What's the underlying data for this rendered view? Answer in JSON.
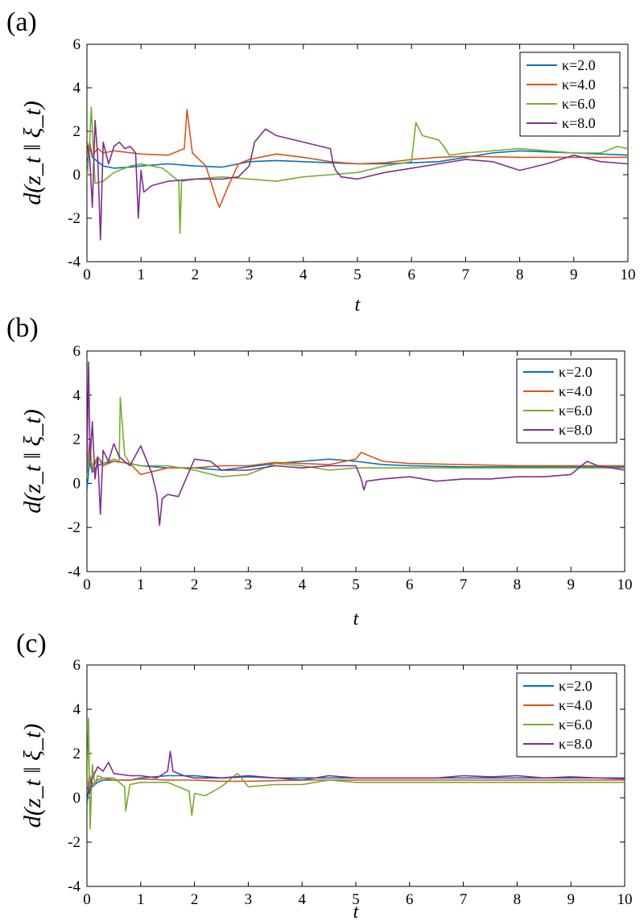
{
  "chart_data": [
    {
      "type": "line",
      "panel_label": "(a)",
      "xlabel": "t",
      "ylabel": "d(z_t ‖ ξ_t)",
      "xlim": [
        0,
        10
      ],
      "ylim": [
        -4,
        6
      ],
      "xticks": [
        "0",
        "1",
        "2",
        "3",
        "4",
        "5",
        "6",
        "7",
        "8",
        "9",
        "10"
      ],
      "yticks": [
        "6",
        "4",
        "2",
        "0",
        "-2",
        "-4"
      ],
      "legend_position": "top-right",
      "series": [
        {
          "name": "κ=2.0",
          "color": "#0072BD",
          "x": [
            0,
            0.05,
            0.1,
            0.2,
            0.3,
            0.5,
            0.8,
            1,
            1.5,
            2,
            2.5,
            3,
            3.5,
            4,
            4.5,
            5,
            5.5,
            6,
            6.5,
            7,
            7.5,
            8,
            8.5,
            9,
            9.5,
            10
          ],
          "y": [
            0.4,
            1.3,
            0.8,
            0.6,
            0.4,
            0.3,
            0.35,
            0.4,
            0.5,
            0.4,
            0.35,
            0.6,
            0.65,
            0.6,
            0.55,
            0.5,
            0.5,
            0.55,
            0.6,
            0.8,
            1.0,
            1.1,
            1.05,
            1.0,
            0.95,
            0.9
          ]
        },
        {
          "name": "κ=4.0",
          "color": "#D95319",
          "x": [
            0,
            0.05,
            0.1,
            0.2,
            0.3,
            0.5,
            1,
            1.5,
            1.8,
            1.85,
            1.95,
            2.2,
            2.35,
            2.4,
            2.45,
            2.6,
            2.8,
            3,
            3.5,
            4,
            4.5,
            5,
            5.5,
            6,
            6.5,
            7,
            8,
            9,
            10
          ],
          "y": [
            0.8,
            1.5,
            0.9,
            1.2,
            1.0,
            1.1,
            0.95,
            0.9,
            1.2,
            3.0,
            1.0,
            0.4,
            -0.8,
            -1.2,
            -1.5,
            -0.6,
            0.5,
            0.7,
            0.95,
            0.8,
            0.6,
            0.5,
            0.55,
            0.7,
            0.8,
            0.85,
            0.8,
            0.8,
            0.8
          ]
        },
        {
          "name": "κ=6.0",
          "color": "#77AC30",
          "x": [
            0,
            0.05,
            0.08,
            0.15,
            0.3,
            0.5,
            0.8,
            1,
            1.4,
            1.7,
            1.72,
            1.75,
            2,
            2.5,
            3,
            3.5,
            4,
            4.5,
            5,
            5.5,
            6,
            6.08,
            6.2,
            6.5,
            6.6,
            6.7,
            7,
            7.5,
            8,
            8.5,
            9,
            9.5,
            9.8,
            10
          ],
          "y": [
            -0.3,
            1.5,
            3.1,
            -0.4,
            -0.3,
            0.1,
            0.4,
            0.5,
            0.3,
            -0.3,
            -2.7,
            -0.3,
            -0.2,
            -0.1,
            -0.2,
            -0.3,
            -0.1,
            0.0,
            0.1,
            0.4,
            0.6,
            2.4,
            1.8,
            1.6,
            1.3,
            0.9,
            1.0,
            1.1,
            1.2,
            1.1,
            1.0,
            1.0,
            1.3,
            1.2
          ]
        },
        {
          "name": "κ=8.0",
          "color": "#7E2F8E",
          "x": [
            0,
            0.05,
            0.1,
            0.15,
            0.2,
            0.25,
            0.3,
            0.4,
            0.5,
            0.6,
            0.7,
            0.8,
            0.9,
            0.95,
            1,
            1.05,
            1.2,
            1.5,
            2,
            2.5,
            2.8,
            3,
            3.1,
            3.2,
            3.3,
            3.5,
            4,
            4.5,
            4.55,
            4.6,
            4.7,
            5,
            5.5,
            6,
            6.5,
            7,
            7.5,
            8,
            8.5,
            9,
            9.5,
            10
          ],
          "y": [
            1.5,
            0.8,
            -1.5,
            2.5,
            0.8,
            -3.0,
            1.5,
            0.5,
            1.3,
            1.5,
            1.2,
            1.3,
            1.0,
            -2.0,
            0.2,
            -0.8,
            -0.5,
            -0.3,
            -0.2,
            -0.2,
            -0.1,
            0.4,
            1.5,
            1.8,
            2.1,
            1.8,
            1.5,
            1.2,
            0.5,
            0.2,
            -0.1,
            -0.2,
            0.1,
            0.3,
            0.5,
            0.7,
            0.6,
            0.2,
            0.5,
            0.9,
            0.6,
            0.5
          ]
        }
      ]
    },
    {
      "type": "line",
      "panel_label": "(b)",
      "xlabel": "t",
      "ylabel": "d(z_t ‖ ξ_t)",
      "xlim": [
        0,
        10
      ],
      "ylim": [
        -4,
        6
      ],
      "xticks": [
        "0",
        "1",
        "2",
        "3",
        "4",
        "5",
        "6",
        "7",
        "8",
        "9",
        "10"
      ],
      "yticks": [
        "6",
        "4",
        "2",
        "0",
        "-2",
        "-4"
      ],
      "legend_position": "top-right",
      "series": [
        {
          "name": "κ=2.0",
          "color": "#0072BD",
          "x": [
            0,
            0.05,
            0.1,
            0.2,
            0.3,
            0.5,
            0.8,
            1,
            1.5,
            2,
            2.5,
            3,
            3.5,
            4,
            4.5,
            5,
            5.5,
            6,
            7,
            8,
            9,
            10
          ],
          "y": [
            -0.3,
            1.0,
            0.5,
            0.8,
            0.9,
            1.0,
            0.9,
            0.8,
            0.7,
            0.7,
            0.6,
            0.75,
            0.9,
            1.0,
            1.1,
            1.0,
            0.85,
            0.8,
            0.75,
            0.75,
            0.75,
            0.75
          ]
        },
        {
          "name": "κ=4.0",
          "color": "#D95319",
          "x": [
            0,
            0.05,
            0.1,
            0.2,
            0.3,
            0.5,
            0.8,
            1,
            1.5,
            2,
            2.5,
            3,
            3.5,
            4,
            4.5,
            5,
            5.1,
            5.5,
            6,
            7,
            8,
            9,
            10
          ],
          "y": [
            0.5,
            1.8,
            0.6,
            1.2,
            0.8,
            1.0,
            0.9,
            0.4,
            0.7,
            0.7,
            0.8,
            0.8,
            0.95,
            0.9,
            0.85,
            1.1,
            1.4,
            1.0,
            0.9,
            0.85,
            0.8,
            0.8,
            0.8
          ]
        },
        {
          "name": "κ=6.0",
          "color": "#77AC30",
          "x": [
            0,
            0.05,
            0.1,
            0.2,
            0.3,
            0.5,
            0.6,
            0.62,
            0.7,
            0.8,
            1,
            1.5,
            2,
            2.5,
            3,
            3.5,
            4,
            4.5,
            5,
            5.5,
            6,
            7,
            8,
            9,
            10
          ],
          "y": [
            0.2,
            1.4,
            0.8,
            1.2,
            0.9,
            1.1,
            1.0,
            3.9,
            1.3,
            0.9,
            0.8,
            0.8,
            0.6,
            0.3,
            0.4,
            0.9,
            0.8,
            0.6,
            0.7,
            0.7,
            0.7,
            0.7,
            0.7,
            0.7,
            0.7
          ]
        },
        {
          "name": "κ=8.0",
          "color": "#7E2F8E",
          "x": [
            0,
            0.03,
            0.06,
            0.1,
            0.15,
            0.2,
            0.25,
            0.3,
            0.4,
            0.5,
            0.6,
            0.8,
            1,
            1.2,
            1.3,
            1.35,
            1.4,
            1.5,
            1.7,
            2,
            2.3,
            2.5,
            3,
            3.5,
            4,
            4.5,
            5,
            5.1,
            5.15,
            5.2,
            5.5,
            6,
            6.5,
            7,
            7.5,
            8,
            8.5,
            9,
            9.3,
            9.5,
            10
          ],
          "y": [
            0.5,
            5.5,
            1.0,
            2.8,
            0.2,
            1.2,
            -1.4,
            1.5,
            1.0,
            1.8,
            1.2,
            0.8,
            1.7,
            0.5,
            -0.5,
            -1.9,
            -0.7,
            -0.5,
            -0.6,
            1.1,
            1.0,
            0.6,
            0.6,
            0.8,
            0.7,
            0.8,
            0.8,
            0.2,
            -0.3,
            0.1,
            0.2,
            0.3,
            0.1,
            0.2,
            0.2,
            0.3,
            0.3,
            0.4,
            1.0,
            0.8,
            0.6
          ]
        }
      ]
    },
    {
      "type": "line",
      "panel_label": "(c)",
      "xlabel": "t",
      "ylabel": "d(z_t ‖ ξ_t)",
      "xlim": [
        0,
        10
      ],
      "ylim": [
        -4,
        6
      ],
      "xticks": [
        "0",
        "1",
        "2",
        "3",
        "4",
        "5",
        "6",
        "7",
        "8",
        "9",
        "10"
      ],
      "yticks": [
        "6",
        "4",
        "2",
        "0",
        "-2",
        "-4"
      ],
      "legend_position": "top-right",
      "series": [
        {
          "name": "κ=2.0",
          "color": "#0072BD",
          "x": [
            0,
            0.05,
            0.1,
            0.2,
            0.3,
            0.5,
            0.8,
            1,
            1.5,
            2,
            2.5,
            3,
            3.5,
            4,
            5,
            6,
            7,
            8,
            9,
            10
          ],
          "y": [
            -0.3,
            0.8,
            0.5,
            0.7,
            0.8,
            0.8,
            0.8,
            0.9,
            1.0,
            1.0,
            0.9,
            0.95,
            0.9,
            0.9,
            0.9,
            0.9,
            0.9,
            0.9,
            0.9,
            0.9
          ]
        },
        {
          "name": "κ=4.0",
          "color": "#D95319",
          "x": [
            0,
            0.05,
            0.1,
            0.2,
            0.3,
            0.5,
            0.8,
            1,
            1.5,
            2,
            2.5,
            3,
            4,
            5,
            6,
            7,
            8,
            9,
            10
          ],
          "y": [
            0.3,
            1.0,
            0.6,
            0.8,
            0.9,
            0.8,
            0.8,
            0.85,
            0.8,
            0.8,
            0.75,
            0.75,
            0.8,
            0.8,
            0.8,
            0.8,
            0.8,
            0.8,
            0.8
          ]
        },
        {
          "name": "κ=6.0",
          "color": "#77AC30",
          "x": [
            0,
            0.03,
            0.06,
            0.1,
            0.15,
            0.2,
            0.3,
            0.5,
            0.7,
            0.72,
            0.8,
            1,
            1.5,
            1.9,
            1.95,
            2.0,
            2.2,
            2.5,
            2.8,
            3,
            3.5,
            4,
            4.5,
            5,
            6,
            7,
            8,
            9,
            10
          ],
          "y": [
            0.3,
            3.6,
            -1.4,
            1.5,
            0.6,
            1.0,
            0.9,
            0.9,
            0.5,
            -0.6,
            0.6,
            0.7,
            0.7,
            0.3,
            -0.8,
            0.2,
            0.1,
            0.5,
            1.1,
            0.5,
            0.6,
            0.6,
            0.8,
            0.7,
            0.7,
            0.7,
            0.7,
            0.7,
            0.7
          ]
        },
        {
          "name": "κ=8.0",
          "color": "#7E2F8E",
          "x": [
            0,
            0.05,
            0.1,
            0.2,
            0.3,
            0.4,
            0.5,
            0.8,
            1,
            1.3,
            1.5,
            1.55,
            1.6,
            1.8,
            2,
            2.5,
            3,
            3.5,
            4,
            4.5,
            5,
            5.5,
            6,
            6.5,
            7,
            7.5,
            8,
            8.5,
            9,
            9.5,
            10
          ],
          "y": [
            0.5,
            0.2,
            0.9,
            1.4,
            1.2,
            1.6,
            1.1,
            1.0,
            1.0,
            0.9,
            1.2,
            2.1,
            1.2,
            1.0,
            0.9,
            0.9,
            1.0,
            0.9,
            0.8,
            1.0,
            0.9,
            0.9,
            0.9,
            0.9,
            1.0,
            0.95,
            1.0,
            0.9,
            0.95,
            0.9,
            0.85
          ]
        }
      ]
    }
  ]
}
